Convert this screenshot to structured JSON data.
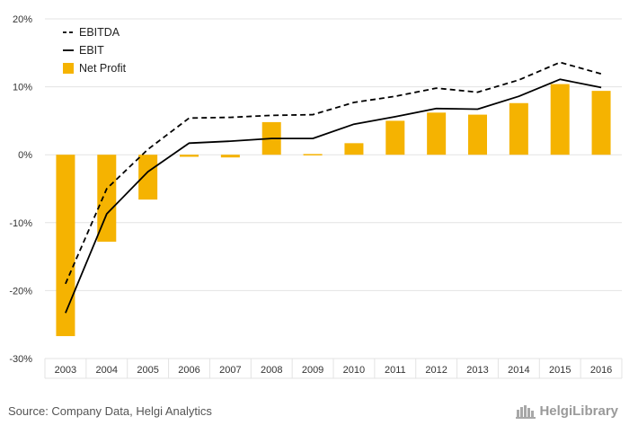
{
  "chart_data": {
    "type": "bar",
    "categories": [
      "2003",
      "2004",
      "2005",
      "2006",
      "2007",
      "2008",
      "2009",
      "2010",
      "2011",
      "2012",
      "2013",
      "2014",
      "2015",
      "2016"
    ],
    "series": [
      {
        "name": "EBITDA",
        "type": "line",
        "style": "dashed",
        "color": "#000000",
        "values": [
          -19.0,
          -5.0,
          0.8,
          5.4,
          5.5,
          5.8,
          5.9,
          7.7,
          8.6,
          9.8,
          9.2,
          11.0,
          13.6,
          11.9
        ]
      },
      {
        "name": "EBIT",
        "type": "line",
        "style": "solid",
        "color": "#000000",
        "values": [
          -23.3,
          -8.7,
          -2.5,
          1.7,
          2.0,
          2.4,
          2.4,
          4.5,
          5.6,
          6.8,
          6.7,
          8.6,
          11.1,
          9.9
        ]
      },
      {
        "name": "Net Profit",
        "type": "bar",
        "color": "#F5B301",
        "values": [
          -26.7,
          -12.8,
          -6.6,
          -0.3,
          -0.4,
          4.8,
          0.1,
          1.7,
          5.0,
          6.2,
          5.9,
          7.6,
          10.4,
          9.4
        ]
      }
    ],
    "yticks": [
      "20%",
      "10%",
      "0%",
      "-10%",
      "-20%",
      "-30%"
    ],
    "ylim": [
      -30,
      20
    ],
    "legend_position": "top-left",
    "grid": true,
    "title": "",
    "xlabel": "",
    "ylabel": ""
  },
  "footer": {
    "source": "Source: Company Data, Helgi Analytics",
    "brand": "HelgiLibrary"
  }
}
